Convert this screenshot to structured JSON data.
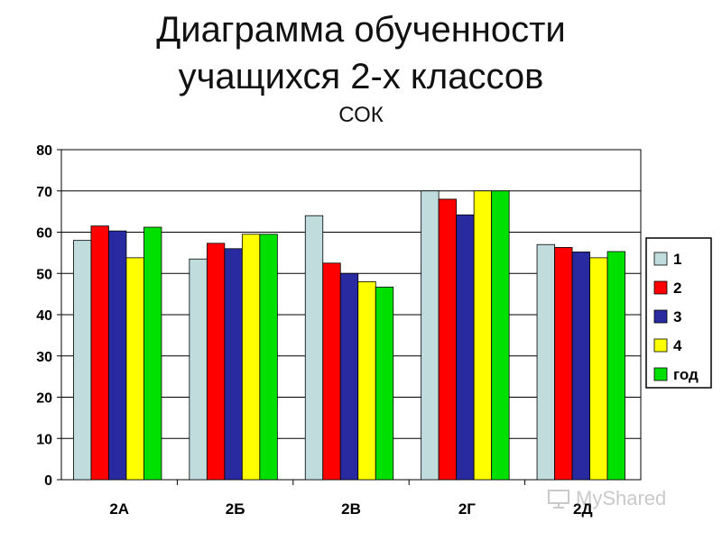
{
  "title_line1": "Диаграмма обученности",
  "title_line2": "учащихся 2-х классов",
  "subtitle": "СОК",
  "watermark": "MyShared",
  "chart_data": {
    "type": "bar",
    "categories": [
      "2А",
      "2Б",
      "2В",
      "2Г",
      "2Д"
    ],
    "series": [
      {
        "name": "1",
        "color": "#c0dcdc",
        "values": [
          58,
          53.5,
          64,
          70,
          57
        ]
      },
      {
        "name": "2",
        "color": "#ff0000",
        "values": [
          61.5,
          57.3,
          52.5,
          68,
          56.3
        ]
      },
      {
        "name": "3",
        "color": "#2a2aa0",
        "values": [
          60.3,
          56,
          50,
          64.2,
          55.2
        ]
      },
      {
        "name": "4",
        "color": "#ffff00",
        "values": [
          53.8,
          59.5,
          48,
          70,
          53.8
        ]
      },
      {
        "name": "год",
        "color": "#00e000",
        "values": [
          61.2,
          59.5,
          46.7,
          70,
          55.3
        ]
      }
    ],
    "yticks": [
      0,
      10,
      20,
      30,
      40,
      50,
      60,
      70,
      80
    ],
    "ylim": [
      0,
      80
    ],
    "grid": true,
    "legend_position": "right"
  }
}
